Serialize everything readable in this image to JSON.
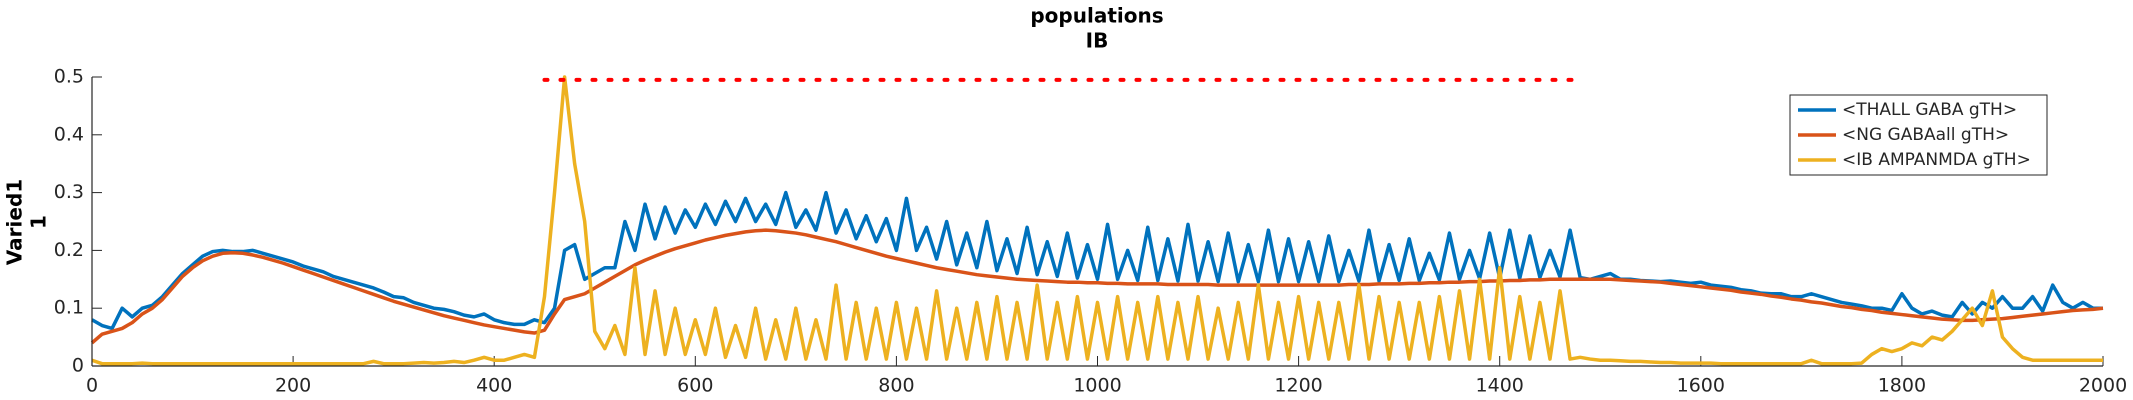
{
  "chart_data": {
    "type": "line",
    "title": "populations",
    "subtitle": "IB",
    "ylabel": "Varied1",
    "ylabel2": "1",
    "legend": "northeast",
    "grid": false,
    "xlim": [
      0,
      2000
    ],
    "ylim": [
      0,
      0.5
    ],
    "xticks": [
      0,
      200,
      400,
      600,
      800,
      1000,
      1200,
      1400,
      1600,
      1800,
      2000
    ],
    "yticks": [
      0,
      0.1,
      0.2,
      0.3,
      0.4,
      0.5
    ],
    "x": [
      0,
      10,
      20,
      30,
      40,
      50,
      60,
      70,
      80,
      90,
      100,
      110,
      120,
      130,
      140,
      150,
      160,
      170,
      180,
      190,
      200,
      210,
      220,
      230,
      240,
      250,
      260,
      270,
      280,
      290,
      300,
      310,
      320,
      330,
      340,
      350,
      360,
      370,
      380,
      390,
      400,
      410,
      420,
      430,
      440,
      450,
      460,
      470,
      480,
      490,
      500,
      510,
      520,
      530,
      540,
      550,
      560,
      570,
      580,
      590,
      600,
      610,
      620,
      630,
      640,
      650,
      660,
      670,
      680,
      690,
      700,
      710,
      720,
      730,
      740,
      750,
      760,
      770,
      780,
      790,
      800,
      810,
      820,
      830,
      840,
      850,
      860,
      870,
      880,
      890,
      900,
      910,
      920,
      930,
      940,
      950,
      960,
      970,
      980,
      990,
      1000,
      1010,
      1020,
      1030,
      1040,
      1050,
      1060,
      1070,
      1080,
      1090,
      1100,
      1110,
      1120,
      1130,
      1140,
      1150,
      1160,
      1170,
      1180,
      1190,
      1200,
      1210,
      1220,
      1230,
      1240,
      1250,
      1260,
      1270,
      1280,
      1290,
      1300,
      1310,
      1320,
      1330,
      1340,
      1350,
      1360,
      1370,
      1380,
      1390,
      1400,
      1410,
      1420,
      1430,
      1440,
      1450,
      1460,
      1470,
      1480,
      1490,
      1500,
      1510,
      1520,
      1530,
      1540,
      1550,
      1560,
      1570,
      1580,
      1590,
      1600,
      1610,
      1620,
      1630,
      1640,
      1650,
      1660,
      1670,
      1680,
      1690,
      1700,
      1710,
      1720,
      1730,
      1740,
      1750,
      1760,
      1770,
      1780,
      1790,
      1800,
      1810,
      1820,
      1830,
      1840,
      1850,
      1860,
      1870,
      1880,
      1890,
      1900,
      1910,
      1920,
      1930,
      1940,
      1950,
      1960,
      1970,
      1980,
      1990,
      2000
    ],
    "series": [
      {
        "name": "<THALL GABA gTH>",
        "color": "#0072bd",
        "values": [
          0.08,
          0.07,
          0.065,
          0.1,
          0.085,
          0.1,
          0.105,
          0.12,
          0.14,
          0.16,
          0.175,
          0.19,
          0.198,
          0.2,
          0.198,
          0.198,
          0.2,
          0.195,
          0.19,
          0.185,
          0.18,
          0.173,
          0.168,
          0.163,
          0.155,
          0.15,
          0.145,
          0.14,
          0.135,
          0.128,
          0.12,
          0.118,
          0.11,
          0.105,
          0.1,
          0.098,
          0.094,
          0.088,
          0.085,
          0.09,
          0.08,
          0.075,
          0.072,
          0.072,
          0.08,
          0.075,
          0.1,
          0.2,
          0.21,
          0.15,
          0.16,
          0.17,
          0.17,
          0.25,
          0.2,
          0.28,
          0.22,
          0.275,
          0.23,
          0.27,
          0.24,
          0.28,
          0.245,
          0.285,
          0.25,
          0.29,
          0.25,
          0.28,
          0.245,
          0.3,
          0.24,
          0.27,
          0.235,
          0.3,
          0.23,
          0.27,
          0.22,
          0.26,
          0.215,
          0.255,
          0.2,
          0.29,
          0.2,
          0.24,
          0.185,
          0.25,
          0.175,
          0.23,
          0.17,
          0.25,
          0.165,
          0.22,
          0.16,
          0.24,
          0.158,
          0.215,
          0.155,
          0.23,
          0.152,
          0.21,
          0.15,
          0.245,
          0.15,
          0.2,
          0.148,
          0.24,
          0.148,
          0.22,
          0.147,
          0.245,
          0.147,
          0.215,
          0.146,
          0.23,
          0.146,
          0.21,
          0.146,
          0.235,
          0.146,
          0.22,
          0.146,
          0.215,
          0.146,
          0.225,
          0.146,
          0.2,
          0.147,
          0.235,
          0.147,
          0.21,
          0.148,
          0.22,
          0.148,
          0.195,
          0.149,
          0.23,
          0.15,
          0.2,
          0.151,
          0.23,
          0.152,
          0.235,
          0.152,
          0.225,
          0.153,
          0.2,
          0.154,
          0.235,
          0.153,
          0.15,
          0.155,
          0.16,
          0.15,
          0.15,
          0.148,
          0.147,
          0.146,
          0.147,
          0.145,
          0.143,
          0.145,
          0.14,
          0.138,
          0.136,
          0.132,
          0.13,
          0.126,
          0.125,
          0.125,
          0.12,
          0.12,
          0.125,
          0.12,
          0.115,
          0.11,
          0.107,
          0.104,
          0.1,
          0.1,
          0.096,
          0.125,
          0.1,
          0.09,
          0.095,
          0.088,
          0.085,
          0.11,
          0.09,
          0.11,
          0.1,
          0.12,
          0.1,
          0.1,
          0.12,
          0.095,
          0.14,
          0.11,
          0.1,
          0.11,
          0.1,
          0.1
        ]
      },
      {
        "name": "<NG GABAall gTH>",
        "color": "#d95319",
        "values": [
          0.04,
          0.055,
          0.06,
          0.065,
          0.075,
          0.09,
          0.1,
          0.115,
          0.135,
          0.155,
          0.17,
          0.182,
          0.19,
          0.195,
          0.196,
          0.195,
          0.192,
          0.188,
          0.183,
          0.178,
          0.172,
          0.166,
          0.16,
          0.154,
          0.148,
          0.142,
          0.136,
          0.13,
          0.124,
          0.118,
          0.112,
          0.107,
          0.102,
          0.097,
          0.092,
          0.087,
          0.083,
          0.079,
          0.075,
          0.071,
          0.068,
          0.065,
          0.062,
          0.059,
          0.057,
          0.062,
          0.09,
          0.115,
          0.12,
          0.125,
          0.135,
          0.145,
          0.155,
          0.165,
          0.175,
          0.183,
          0.19,
          0.197,
          0.203,
          0.208,
          0.213,
          0.218,
          0.222,
          0.226,
          0.229,
          0.232,
          0.234,
          0.235,
          0.234,
          0.232,
          0.23,
          0.227,
          0.223,
          0.219,
          0.215,
          0.21,
          0.205,
          0.2,
          0.195,
          0.19,
          0.186,
          0.182,
          0.178,
          0.174,
          0.17,
          0.167,
          0.164,
          0.161,
          0.158,
          0.156,
          0.154,
          0.152,
          0.15,
          0.149,
          0.148,
          0.147,
          0.146,
          0.145,
          0.145,
          0.144,
          0.144,
          0.143,
          0.143,
          0.142,
          0.142,
          0.142,
          0.142,
          0.141,
          0.141,
          0.141,
          0.141,
          0.141,
          0.14,
          0.14,
          0.14,
          0.14,
          0.14,
          0.14,
          0.14,
          0.14,
          0.14,
          0.14,
          0.14,
          0.14,
          0.14,
          0.141,
          0.141,
          0.141,
          0.142,
          0.142,
          0.142,
          0.143,
          0.143,
          0.144,
          0.144,
          0.145,
          0.145,
          0.146,
          0.146,
          0.147,
          0.147,
          0.148,
          0.148,
          0.149,
          0.149,
          0.15,
          0.15,
          0.15,
          0.15,
          0.15,
          0.15,
          0.15,
          0.149,
          0.148,
          0.147,
          0.146,
          0.145,
          0.143,
          0.141,
          0.139,
          0.137,
          0.135,
          0.133,
          0.131,
          0.128,
          0.126,
          0.124,
          0.121,
          0.119,
          0.116,
          0.114,
          0.111,
          0.109,
          0.106,
          0.103,
          0.101,
          0.098,
          0.096,
          0.093,
          0.091,
          0.089,
          0.087,
          0.085,
          0.083,
          0.081,
          0.08,
          0.079,
          0.079,
          0.08,
          0.081,
          0.082,
          0.084,
          0.086,
          0.088,
          0.09,
          0.092,
          0.094,
          0.096,
          0.097,
          0.098,
          0.1
        ]
      },
      {
        "name": "<IB AMPANMDA gTH>",
        "color": "#edb120",
        "values": [
          0.01,
          0.004,
          0.004,
          0.004,
          0.004,
          0.005,
          0.004,
          0.004,
          0.004,
          0.004,
          0.004,
          0.004,
          0.004,
          0.004,
          0.004,
          0.004,
          0.004,
          0.004,
          0.004,
          0.004,
          0.004,
          0.004,
          0.004,
          0.004,
          0.004,
          0.004,
          0.004,
          0.004,
          0.008,
          0.004,
          0.004,
          0.004,
          0.005,
          0.006,
          0.005,
          0.006,
          0.008,
          0.006,
          0.01,
          0.015,
          0.01,
          0.01,
          0.015,
          0.02,
          0.015,
          0.12,
          0.3,
          0.5,
          0.35,
          0.25,
          0.06,
          0.03,
          0.07,
          0.02,
          0.17,
          0.02,
          0.13,
          0.02,
          0.1,
          0.02,
          0.08,
          0.02,
          0.1,
          0.015,
          0.07,
          0.015,
          0.1,
          0.012,
          0.08,
          0.012,
          0.1,
          0.012,
          0.08,
          0.012,
          0.14,
          0.012,
          0.11,
          0.012,
          0.1,
          0.012,
          0.11,
          0.012,
          0.1,
          0.012,
          0.13,
          0.012,
          0.1,
          0.012,
          0.11,
          0.012,
          0.12,
          0.012,
          0.11,
          0.012,
          0.14,
          0.012,
          0.11,
          0.012,
          0.12,
          0.012,
          0.11,
          0.012,
          0.12,
          0.012,
          0.11,
          0.012,
          0.12,
          0.012,
          0.11,
          0.012,
          0.12,
          0.012,
          0.1,
          0.012,
          0.11,
          0.012,
          0.14,
          0.012,
          0.11,
          0.012,
          0.12,
          0.012,
          0.11,
          0.012,
          0.11,
          0.012,
          0.14,
          0.012,
          0.12,
          0.012,
          0.11,
          0.012,
          0.11,
          0.012,
          0.12,
          0.012,
          0.13,
          0.012,
          0.15,
          0.012,
          0.17,
          0.012,
          0.12,
          0.012,
          0.11,
          0.012,
          0.13,
          0.012,
          0.015,
          0.012,
          0.01,
          0.01,
          0.009,
          0.008,
          0.008,
          0.007,
          0.006,
          0.006,
          0.005,
          0.005,
          0.005,
          0.005,
          0.004,
          0.004,
          0.004,
          0.004,
          0.004,
          0.004,
          0.004,
          0.004,
          0.004,
          0.01,
          0.004,
          0.004,
          0.004,
          0.004,
          0.005,
          0.02,
          0.03,
          0.025,
          0.03,
          0.04,
          0.035,
          0.05,
          0.045,
          0.06,
          0.08,
          0.1,
          0.07,
          0.13,
          0.05,
          0.03,
          0.015,
          0.01,
          0.01,
          0.01,
          0.01,
          0.01,
          0.01,
          0.01,
          0.01
        ]
      }
    ],
    "marker_line": {
      "x": [
        450,
        1480
      ],
      "y": 0.495,
      "color": "#ff0000"
    }
  }
}
